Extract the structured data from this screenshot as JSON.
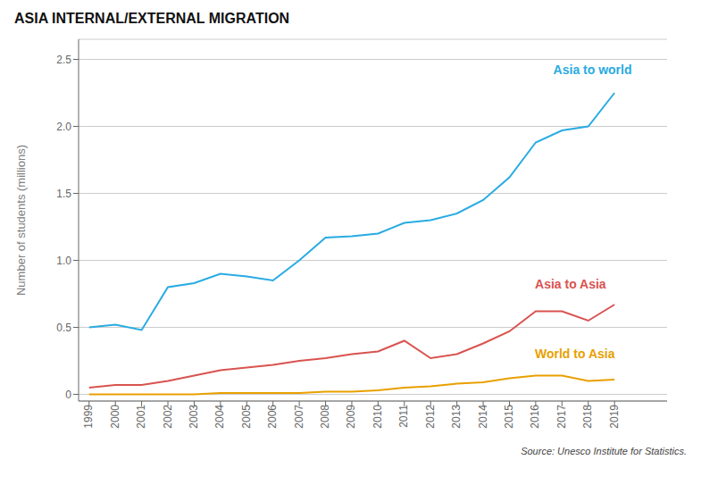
{
  "chart_data": {
    "type": "line",
    "title": "ASIA INTERNAL/EXTERNAL MIGRATION",
    "y_label": "Number of students (millions)",
    "source": "Source: Unesco Institute for Statistics.",
    "x": [
      1999,
      2000,
      2001,
      2002,
      2003,
      2004,
      2005,
      2006,
      2007,
      2008,
      2009,
      2010,
      2011,
      2012,
      2013,
      2014,
      2015,
      2016,
      2017,
      2018,
      2019
    ],
    "series": [
      {
        "name": "Asia to world",
        "color": "#29ABE2",
        "values": [
          0.5,
          0.52,
          0.48,
          0.8,
          0.83,
          0.9,
          0.88,
          0.85,
          1.0,
          1.17,
          1.18,
          1.2,
          1.28,
          1.3,
          1.35,
          1.45,
          1.62,
          1.88,
          1.97,
          2.0,
          2.25
        ]
      },
      {
        "name": "Asia to Asia",
        "color": "#D9534F",
        "values": [
          0.05,
          0.07,
          0.07,
          0.1,
          0.14,
          0.18,
          0.2,
          0.22,
          0.25,
          0.27,
          0.3,
          0.32,
          0.4,
          0.27,
          0.3,
          0.38,
          0.47,
          0.62,
          0.62,
          0.55,
          0.67
        ]
      },
      {
        "name": "World to Asia",
        "color": "#E8A000",
        "values": [
          0.0,
          0.0,
          0.0,
          0.0,
          0.0,
          0.01,
          0.01,
          0.01,
          0.01,
          0.02,
          0.02,
          0.03,
          0.05,
          0.06,
          0.08,
          0.09,
          0.12,
          0.14,
          0.14,
          0.1,
          0.11
        ]
      }
    ],
    "annotations": [
      {
        "text": "Asia to world",
        "x": 2016.5,
        "y": 2.42,
        "color": "#29ABE2"
      },
      {
        "text": "Asia to Asia",
        "x": 2015.8,
        "y": 0.82,
        "color": "#D9534F"
      },
      {
        "text": "World to Asia",
        "x": 2015.8,
        "y": 0.3,
        "color": "#E8A000"
      }
    ],
    "xlim": [
      1998.6,
      2021.0
    ],
    "xticks": [
      1999,
      2000,
      2001,
      2002,
      2003,
      2004,
      2005,
      2006,
      2007,
      2008,
      2009,
      2010,
      2011,
      2012,
      2013,
      2014,
      2015,
      2016,
      2017,
      2018,
      2019
    ],
    "ylim": [
      -0.05,
      2.65
    ],
    "yticks": [
      0,
      0.5,
      {
        "value": 1,
        "label": "1.0"
      },
      1.5,
      {
        "value": 2,
        "label": "2.0"
      },
      2.5
    ],
    "grid": true
  }
}
